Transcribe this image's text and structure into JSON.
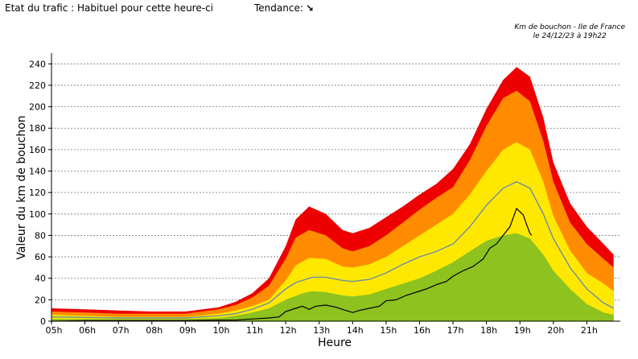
{
  "header": {
    "status_label": "Etat du trafic : Habituel pour cette heure-ci",
    "trend_label": "Tendance:",
    "trend_icon": "arrow-down-right-icon"
  },
  "caption": {
    "line1": "Km de bouchon - Ile de France",
    "line2": "le 24/12/23 à 19h22"
  },
  "chart_data": {
    "type": "area",
    "xlabel": "Heure",
    "ylabel": "Valeur du km de bouchon",
    "ylim": [
      0,
      250
    ],
    "yticks": [
      0,
      20,
      40,
      60,
      80,
      100,
      120,
      140,
      160,
      180,
      200,
      220,
      240
    ],
    "xlim": [
      5,
      22
    ],
    "xticks": [
      {
        "v": 5,
        "label": "05h"
      },
      {
        "v": 6,
        "label": "06h"
      },
      {
        "v": 7,
        "label": "07h"
      },
      {
        "v": 8,
        "label": "08h"
      },
      {
        "v": 9,
        "label": "09h"
      },
      {
        "v": 10,
        "label": "10h"
      },
      {
        "v": 11,
        "label": "11h"
      },
      {
        "v": 12,
        "label": "12h"
      },
      {
        "v": 13,
        "label": "13h"
      },
      {
        "v": 14,
        "label": "14h"
      },
      {
        "v": 15,
        "label": "15h"
      },
      {
        "v": 16,
        "label": "16h"
      },
      {
        "v": 17,
        "label": "17h"
      },
      {
        "v": 18,
        "label": "18h"
      },
      {
        "v": 19,
        "label": "19h"
      },
      {
        "v": 20,
        "label": "20h"
      },
      {
        "v": 21,
        "label": "21h"
      }
    ],
    "grid": "horizontal-dotted",
    "bands": [
      {
        "color": "#ee0000",
        "points": [
          [
            5,
            12
          ],
          [
            6,
            11
          ],
          [
            7,
            10
          ],
          [
            8,
            9
          ],
          [
            9,
            9
          ],
          [
            10,
            13
          ],
          [
            10.5,
            18
          ],
          [
            11,
            26
          ],
          [
            11.5,
            40
          ],
          [
            12,
            70
          ],
          [
            12.3,
            95
          ],
          [
            12.7,
            107
          ],
          [
            13.2,
            100
          ],
          [
            13.7,
            85
          ],
          [
            14,
            82
          ],
          [
            14.5,
            87
          ],
          [
            15,
            97
          ],
          [
            15.5,
            107
          ],
          [
            16,
            118
          ],
          [
            16.5,
            128
          ],
          [
            17,
            142
          ],
          [
            17.5,
            165
          ],
          [
            18,
            198
          ],
          [
            18.5,
            225
          ],
          [
            18.9,
            237
          ],
          [
            19.3,
            228
          ],
          [
            19.7,
            190
          ],
          [
            20,
            148
          ],
          [
            20.5,
            110
          ],
          [
            21,
            88
          ],
          [
            21.5,
            72
          ],
          [
            21.8,
            62
          ]
        ]
      },
      {
        "color": "#ff8c00",
        "points": [
          [
            5,
            9
          ],
          [
            6,
            8
          ],
          [
            7,
            7
          ],
          [
            8,
            7
          ],
          [
            9,
            7
          ],
          [
            10,
            11
          ],
          [
            10.5,
            15
          ],
          [
            11,
            22
          ],
          [
            11.5,
            33
          ],
          [
            12,
            58
          ],
          [
            12.3,
            78
          ],
          [
            12.7,
            85
          ],
          [
            13.2,
            80
          ],
          [
            13.7,
            68
          ],
          [
            14,
            65
          ],
          [
            14.5,
            70
          ],
          [
            15,
            80
          ],
          [
            15.5,
            92
          ],
          [
            16,
            104
          ],
          [
            16.5,
            115
          ],
          [
            17,
            125
          ],
          [
            17.5,
            150
          ],
          [
            18,
            182
          ],
          [
            18.5,
            208
          ],
          [
            18.9,
            215
          ],
          [
            19.3,
            205
          ],
          [
            19.7,
            168
          ],
          [
            20,
            130
          ],
          [
            20.5,
            92
          ],
          [
            21,
            72
          ],
          [
            21.5,
            58
          ],
          [
            21.8,
            50
          ]
        ]
      },
      {
        "color": "#ffe800",
        "points": [
          [
            5,
            6
          ],
          [
            6,
            5
          ],
          [
            7,
            4
          ],
          [
            8,
            4
          ],
          [
            9,
            4
          ],
          [
            10,
            7
          ],
          [
            10.5,
            10
          ],
          [
            11,
            14
          ],
          [
            11.5,
            20
          ],
          [
            12,
            38
          ],
          [
            12.3,
            52
          ],
          [
            12.7,
            59
          ],
          [
            13.2,
            58
          ],
          [
            13.7,
            51
          ],
          [
            14,
            50
          ],
          [
            14.5,
            53
          ],
          [
            15,
            60
          ],
          [
            15.5,
            70
          ],
          [
            16,
            80
          ],
          [
            16.5,
            90
          ],
          [
            17,
            100
          ],
          [
            17.5,
            118
          ],
          [
            18,
            140
          ],
          [
            18.5,
            160
          ],
          [
            18.9,
            167
          ],
          [
            19.3,
            160
          ],
          [
            19.7,
            130
          ],
          [
            20,
            98
          ],
          [
            20.5,
            66
          ],
          [
            21,
            45
          ],
          [
            21.5,
            35
          ],
          [
            21.8,
            28
          ]
        ]
      },
      {
        "color": "#8dc21f",
        "points": [
          [
            5,
            2
          ],
          [
            6,
            2
          ],
          [
            7,
            2
          ],
          [
            8,
            2
          ],
          [
            9,
            2
          ],
          [
            10,
            3
          ],
          [
            10.5,
            5
          ],
          [
            11,
            8
          ],
          [
            11.5,
            12
          ],
          [
            12,
            20
          ],
          [
            12.5,
            26
          ],
          [
            12.8,
            28
          ],
          [
            13.2,
            27
          ],
          [
            13.7,
            24
          ],
          [
            14,
            23
          ],
          [
            14.5,
            25
          ],
          [
            15,
            30
          ],
          [
            15.5,
            35
          ],
          [
            16,
            40
          ],
          [
            16.5,
            47
          ],
          [
            17,
            55
          ],
          [
            17.5,
            65
          ],
          [
            18,
            75
          ],
          [
            18.5,
            80
          ],
          [
            18.9,
            82
          ],
          [
            19.3,
            77
          ],
          [
            19.7,
            62
          ],
          [
            20,
            47
          ],
          [
            20.5,
            30
          ],
          [
            21,
            16
          ],
          [
            21.5,
            8
          ],
          [
            21.8,
            6
          ]
        ]
      }
    ],
    "series": [
      {
        "color": "#6e8ca0",
        "points": [
          [
            5,
            4
          ],
          [
            6,
            3.5
          ],
          [
            7,
            3
          ],
          [
            8,
            3
          ],
          [
            9,
            3
          ],
          [
            10,
            5
          ],
          [
            10.5,
            7
          ],
          [
            11,
            11
          ],
          [
            11.5,
            17
          ],
          [
            12,
            30
          ],
          [
            12.3,
            36
          ],
          [
            12.8,
            41
          ],
          [
            13.2,
            41
          ],
          [
            13.7,
            38
          ],
          [
            14,
            37
          ],
          [
            14.5,
            39
          ],
          [
            15,
            45
          ],
          [
            15.5,
            53
          ],
          [
            16,
            60
          ],
          [
            16.5,
            65
          ],
          [
            17,
            72
          ],
          [
            17.5,
            88
          ],
          [
            18,
            108
          ],
          [
            18.5,
            124
          ],
          [
            18.9,
            130
          ],
          [
            19.3,
            124
          ],
          [
            19.7,
            100
          ],
          [
            20,
            77
          ],
          [
            20.5,
            50
          ],
          [
            21,
            30
          ],
          [
            21.5,
            17
          ],
          [
            21.8,
            12
          ]
        ]
      },
      {
        "color": "#000000",
        "points": [
          [
            5,
            0
          ],
          [
            6,
            0.5
          ],
          [
            7,
            0.5
          ],
          [
            8,
            0.5
          ],
          [
            9,
            0.5
          ],
          [
            10,
            1
          ],
          [
            10.5,
            1
          ],
          [
            11,
            2
          ],
          [
            11.5,
            3
          ],
          [
            11.8,
            4
          ],
          [
            12,
            9
          ],
          [
            12.3,
            12
          ],
          [
            12.5,
            14
          ],
          [
            12.7,
            11
          ],
          [
            12.9,
            14
          ],
          [
            13.2,
            15
          ],
          [
            13.5,
            13
          ],
          [
            13.8,
            10
          ],
          [
            14,
            8
          ],
          [
            14.2,
            10
          ],
          [
            14.5,
            12
          ],
          [
            14.8,
            14
          ],
          [
            15,
            19
          ],
          [
            15.3,
            20
          ],
          [
            15.6,
            24
          ],
          [
            15.9,
            27
          ],
          [
            16.2,
            30
          ],
          [
            16.5,
            34
          ],
          [
            16.8,
            37
          ],
          [
            17,
            42
          ],
          [
            17.3,
            47
          ],
          [
            17.6,
            51
          ],
          [
            17.9,
            58
          ],
          [
            18.1,
            68
          ],
          [
            18.3,
            72
          ],
          [
            18.5,
            80
          ],
          [
            18.7,
            88
          ],
          [
            18.9,
            105
          ],
          [
            19.1,
            99
          ],
          [
            19.2,
            90
          ],
          [
            19.3,
            82
          ],
          [
            19.35,
            80
          ]
        ]
      }
    ]
  }
}
